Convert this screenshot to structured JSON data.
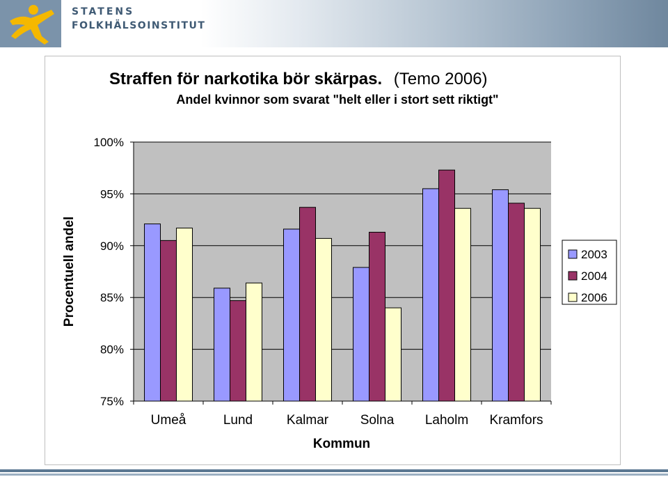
{
  "header": {
    "org_line1": "STATENS",
    "org_line2": "FOLKHÄLSOINSTITUT",
    "logo_icon": "running-figure-icon"
  },
  "colors": {
    "plot_bg": "#c0c0c0",
    "series_2003": "#9999ff",
    "series_2004": "#993366",
    "series_2006": "#ffffcc",
    "logo_figure": "#f5b800",
    "header_dark": "#3f5a74"
  },
  "chart_data": {
    "type": "bar",
    "title": "Straffen för narkotika bör skärpas.",
    "title_suffix": "(Temo 2006)",
    "subtitle": "Andel kvinnor som svarat \"helt eller i stort sett riktigt\"",
    "xlabel": "Kommun",
    "ylabel": "Procentuell andel",
    "categories": [
      "Umeå",
      "Lund",
      "Kalmar",
      "Solna",
      "Laholm",
      "Kramfors"
    ],
    "series": [
      {
        "name": "2003",
        "values": [
          92.1,
          85.9,
          91.6,
          87.9,
          95.5,
          95.4
        ]
      },
      {
        "name": "2004",
        "values": [
          90.5,
          84.7,
          93.7,
          91.3,
          97.3,
          94.1
        ]
      },
      {
        "name": "2006",
        "values": [
          91.7,
          86.4,
          90.7,
          84.0,
          93.6,
          93.6
        ]
      }
    ],
    "ylim": [
      75,
      100
    ],
    "yticks": [
      75,
      80,
      85,
      90,
      95,
      100
    ],
    "ytick_labels": [
      "75%",
      "80%",
      "85%",
      "90%",
      "95%",
      "100%"
    ],
    "grid": true,
    "legend_position": "right"
  }
}
